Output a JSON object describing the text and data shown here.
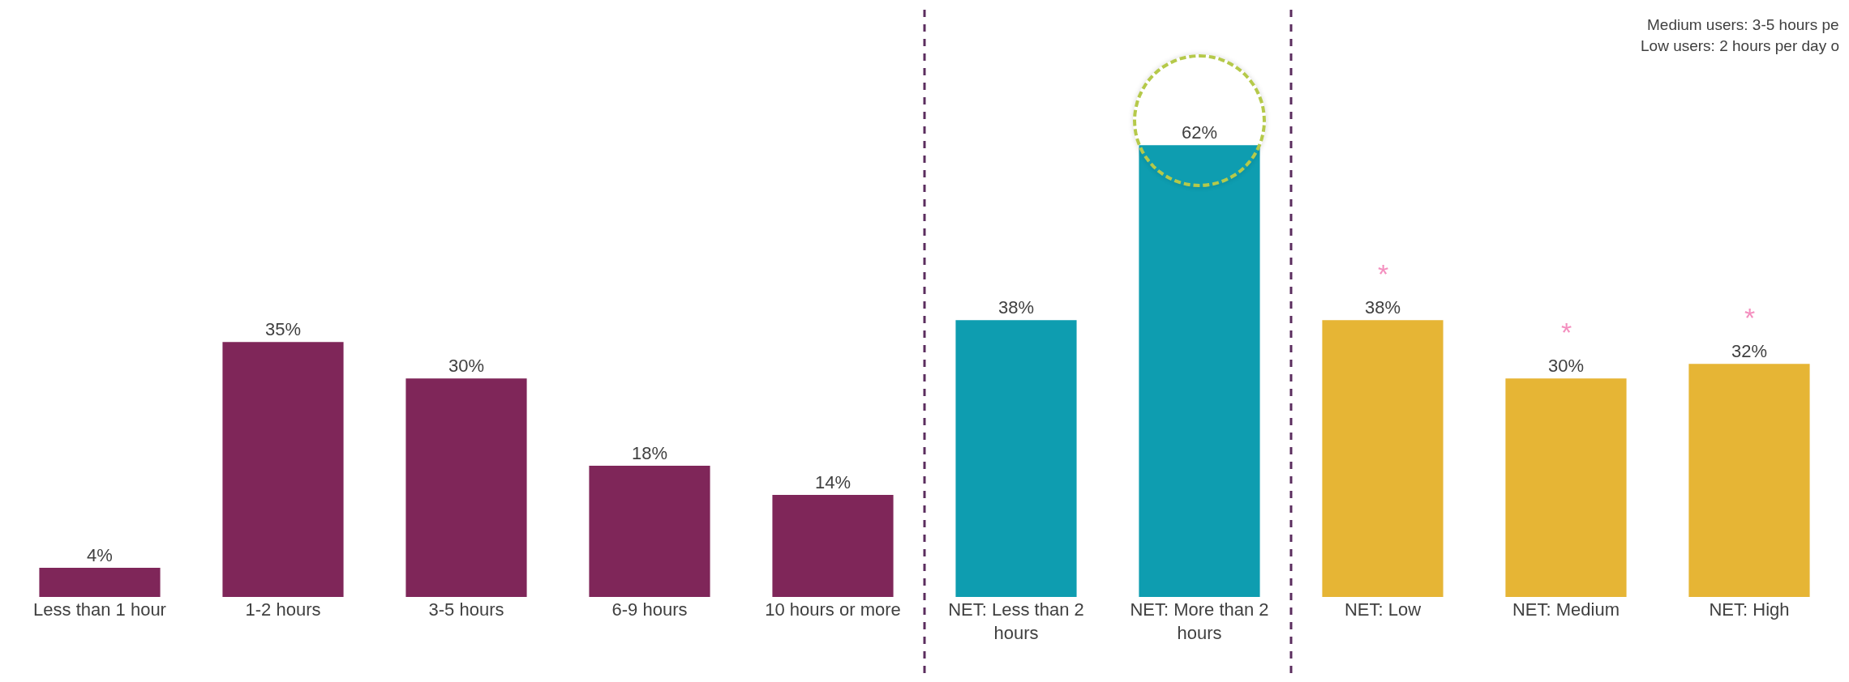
{
  "chart_data": {
    "type": "bar",
    "categories": [
      "Less than 1 hour",
      "1-2 hours",
      "3-5 hours",
      "6-9 hours",
      "10 hours or more",
      "NET: Less than 2 hours",
      "NET: More than 2 hours",
      "NET: Low",
      "NET: Medium",
      "NET: High"
    ],
    "values": [
      4,
      35,
      30,
      18,
      14,
      38,
      62,
      38,
      30,
      32
    ],
    "colors": [
      "#7f2659",
      "#7f2659",
      "#7f2659",
      "#7f2659",
      "#7f2659",
      "#0e9db0",
      "#0e9db0",
      "#e6b535",
      "#e6b535",
      "#e6b535"
    ],
    "value_labels": [
      "4%",
      "35%",
      "30%",
      "18%",
      "14%",
      "38%",
      "62%",
      "38%",
      "30%",
      "32%"
    ],
    "annotations": [
      "Medium users: 3-5 hours pe",
      "Low users: 2 hours per day o",
      {
        "text": "*",
        "x": "NET: Low",
        "y": 38
      },
      {
        "text": "*",
        "x": "NET: Medium",
        "y": 30
      },
      {
        "text": "*",
        "x": "NET: High",
        "y": 32
      }
    ],
    "grid": false
  }
}
